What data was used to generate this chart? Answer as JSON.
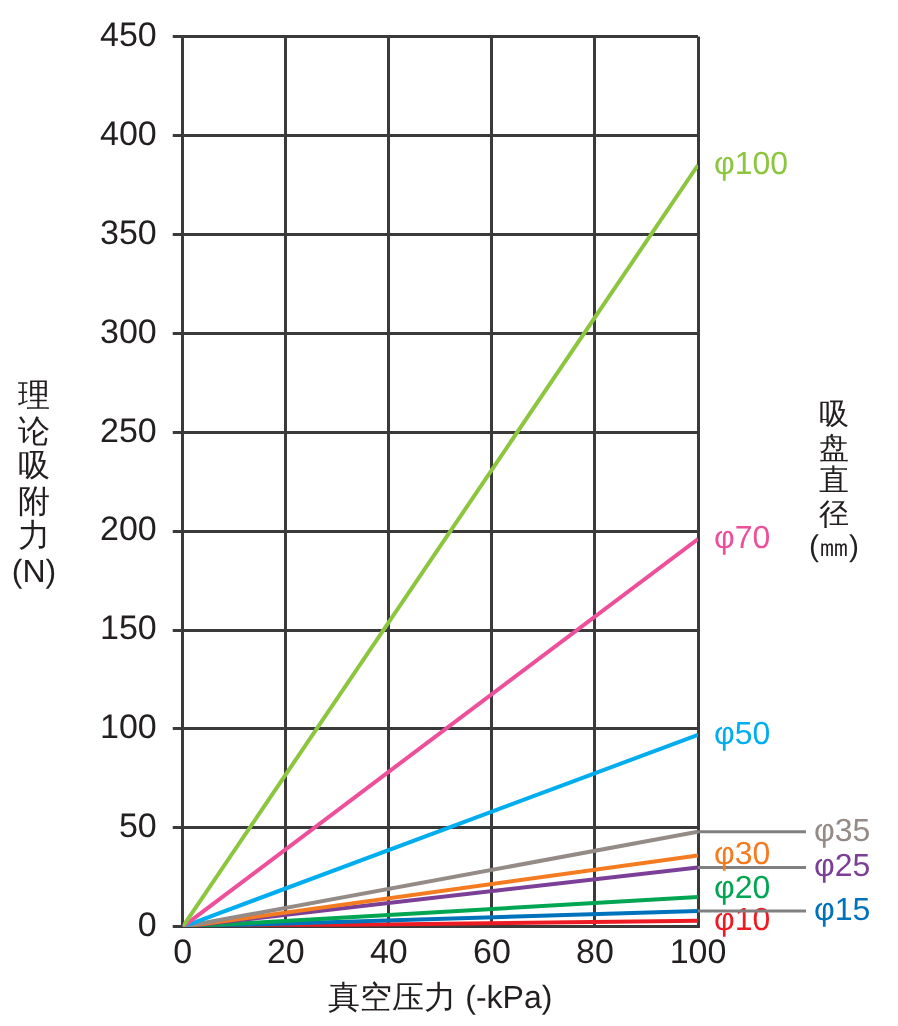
{
  "chart_data": {
    "type": "line",
    "xlabel": "真空压力 (-kPa)",
    "ylabel": "理论吸附力(N)",
    "legend_title": "吸盘直径(㎜)",
    "x": [
      0,
      100
    ],
    "xlim": [
      0,
      100
    ],
    "xticks": [
      0,
      20,
      40,
      60,
      80,
      100
    ],
    "ylim": [
      0,
      450
    ],
    "yticks": [
      0,
      50,
      100,
      150,
      200,
      250,
      300,
      350,
      400,
      450
    ],
    "grid": true,
    "legend": false,
    "marker": "none",
    "line_style": "solid",
    "series": [
      {
        "name": "φ100",
        "color": "#8cc63f",
        "values": [
          0,
          385
        ]
      },
      {
        "name": "φ70",
        "color": "#ee4f9a",
        "values": [
          0,
          196
        ]
      },
      {
        "name": "φ50",
        "color": "#00aeef",
        "values": [
          0,
          97
        ]
      },
      {
        "name": "φ35",
        "color": "#948a86",
        "values": [
          0,
          48
        ]
      },
      {
        "name": "φ30",
        "color": "#f47b20",
        "values": [
          0,
          36
        ]
      },
      {
        "name": "φ25",
        "color": "#7b3f98",
        "values": [
          0,
          30
        ]
      },
      {
        "name": "φ20",
        "color": "#00a651",
        "values": [
          0,
          15
        ]
      },
      {
        "name": "φ15",
        "color": "#0072bc",
        "values": [
          0,
          8
        ]
      },
      {
        "name": "φ10",
        "color": "#ed1c24",
        "values": [
          0,
          3
        ]
      }
    ]
  }
}
